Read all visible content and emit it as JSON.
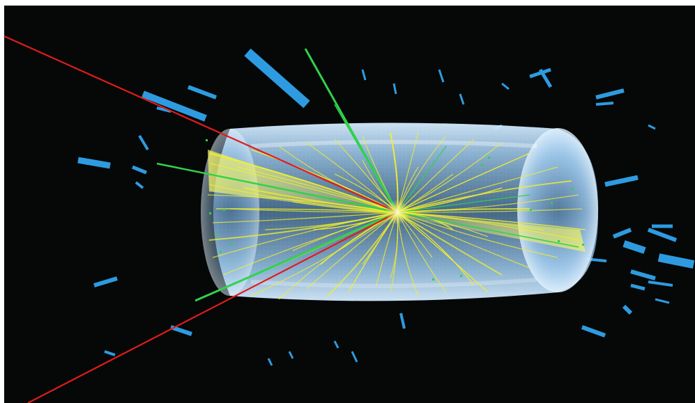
{
  "image": {
    "subject": "collision-event-display",
    "colors": {
      "background": "#050807",
      "frame": "#ffffff",
      "detector_barrel": "#8fc7f2",
      "detector_glow": "#cfe9ff",
      "tracks": "#f2ef2a",
      "energy_deposits": "#2e9be0",
      "muon_tracks": "#e21b1b",
      "green_tracks": "#2fd24b"
    },
    "icons": [
      "detector-barrel",
      "jet-cone",
      "muon-track",
      "calorimeter-block"
    ]
  }
}
